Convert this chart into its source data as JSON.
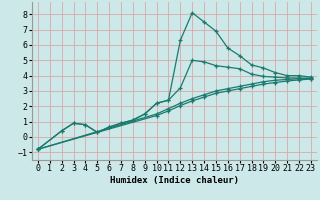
{
  "xlabel": "Humidex (Indice chaleur)",
  "bg_color": "#cce8e8",
  "grid_color": "#d8a8a8",
  "line_color": "#1a7a6e",
  "xlim": [
    -0.5,
    23.5
  ],
  "ylim": [
    -1.5,
    8.8
  ],
  "xticks": [
    0,
    1,
    2,
    3,
    4,
    5,
    6,
    7,
    8,
    9,
    10,
    11,
    12,
    13,
    14,
    15,
    16,
    17,
    18,
    19,
    20,
    21,
    22,
    23
  ],
  "yticks": [
    -1,
    0,
    1,
    2,
    3,
    4,
    5,
    6,
    7,
    8
  ],
  "line1_x": [
    0,
    2,
    3,
    4,
    5,
    6,
    7,
    8,
    9,
    10,
    11,
    12,
    13,
    14,
    15,
    16,
    17,
    18,
    19,
    20,
    21,
    22,
    23
  ],
  "line1_y": [
    -0.8,
    0.4,
    0.9,
    0.8,
    0.3,
    0.65,
    0.9,
    1.1,
    1.5,
    2.2,
    2.4,
    6.3,
    8.1,
    7.5,
    6.9,
    5.8,
    5.3,
    4.7,
    4.5,
    4.2,
    4.0,
    4.0,
    3.9
  ],
  "line2_x": [
    0,
    2,
    3,
    4,
    5,
    6,
    7,
    8,
    9,
    10,
    11,
    12,
    13,
    14,
    15,
    16,
    17,
    18,
    19,
    20,
    21,
    22,
    23
  ],
  "line2_y": [
    -0.8,
    0.4,
    0.9,
    0.8,
    0.3,
    0.65,
    0.9,
    1.1,
    1.5,
    2.2,
    2.4,
    3.2,
    5.0,
    4.9,
    4.65,
    4.55,
    4.45,
    4.1,
    3.95,
    3.9,
    3.85,
    3.85,
    3.8
  ],
  "line3_x": [
    0,
    10,
    11,
    12,
    13,
    14,
    15,
    16,
    17,
    18,
    19,
    20,
    21,
    22,
    23
  ],
  "line3_y": [
    -0.8,
    1.5,
    1.85,
    2.2,
    2.5,
    2.75,
    3.0,
    3.15,
    3.3,
    3.45,
    3.6,
    3.7,
    3.75,
    3.8,
    3.85
  ],
  "line4_x": [
    0,
    10,
    11,
    12,
    13,
    14,
    15,
    16,
    17,
    18,
    19,
    20,
    21,
    22,
    23
  ],
  "line4_y": [
    -0.8,
    1.4,
    1.7,
    2.05,
    2.35,
    2.6,
    2.85,
    3.0,
    3.15,
    3.3,
    3.45,
    3.55,
    3.65,
    3.72,
    3.78
  ]
}
